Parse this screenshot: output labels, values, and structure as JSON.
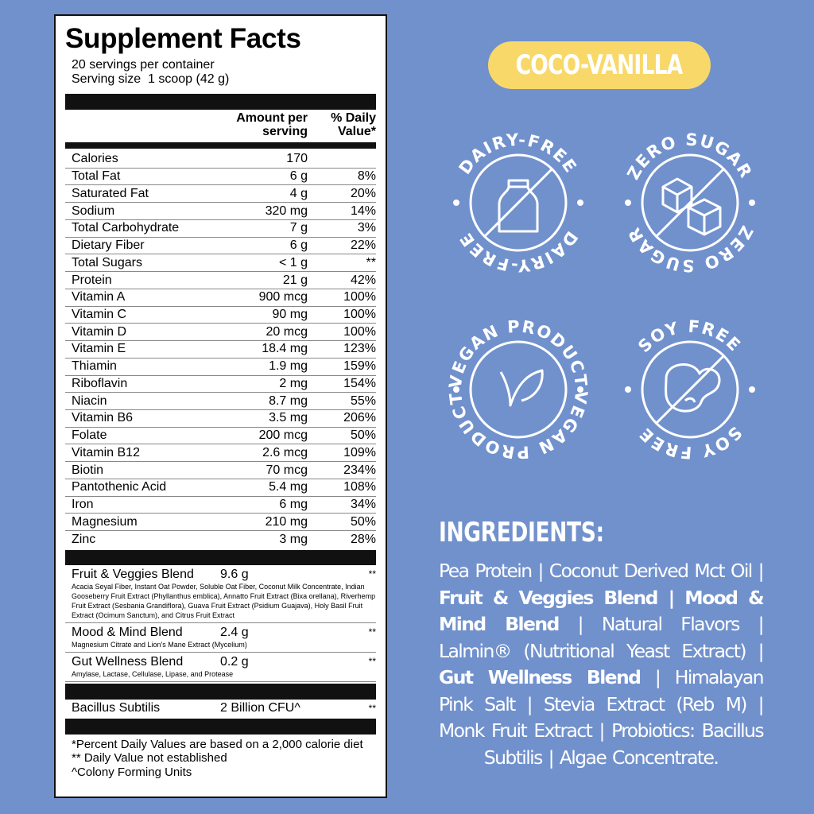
{
  "facts": {
    "title": "Supplement Facts",
    "servings": "20 servings per container",
    "serving_size": "Serving size  1 scoop (42 g)",
    "header": [
      "Amount per serving",
      "% Daily Value*"
    ],
    "rows": [
      [
        "Calories",
        "170"
      ],
      [
        "Total Fat",
        "6 g",
        "8%"
      ],
      [
        "Saturated Fat",
        "4 g",
        "20%"
      ],
      [
        "Sodium",
        "320 mg",
        "14%"
      ],
      [
        "Total Carbohydrate",
        "7 g",
        "3%"
      ],
      [
        "Dietary Fiber",
        "6 g",
        "22%"
      ],
      [
        "Total Sugars",
        "< 1 g",
        "**"
      ],
      [
        "Protein",
        "21 g",
        "42%"
      ],
      [
        "Vitamin A",
        "900 mcg",
        "100%"
      ],
      [
        "Vitamin C",
        "90 mg",
        "100%"
      ],
      [
        "Vitamin D",
        "20 mcg",
        "100%"
      ],
      [
        "Vitamin E",
        "18.4 mg",
        "123%"
      ],
      [
        "Thiamin",
        "1.9 mg",
        "159%"
      ],
      [
        "Riboflavin",
        "2 mg",
        "154%"
      ],
      [
        "Niacin",
        "8.7 mg",
        "55%"
      ],
      [
        "Vitamin B6",
        "3.5 mg",
        "206%"
      ],
      [
        "Folate",
        "200 mcg",
        "50%"
      ],
      [
        "Vitamin B12",
        "2.6 mcg",
        "109%"
      ],
      [
        "Biotin",
        "70 mcg",
        "234%"
      ],
      [
        "Pantothenic Acid",
        "5.4 mg",
        "108%"
      ],
      [
        "Iron",
        "6 mg",
        "34%"
      ],
      [
        "Magnesium",
        "210 mg",
        "50%"
      ],
      [
        "Zinc",
        "3 mg",
        "28%"
      ]
    ],
    "blends": [
      {
        "name": "Fruit & Veggies Blend",
        "amount": "9.6 g",
        "dv": "**",
        "description": "Acacia Seyal Fiber, Instant Oat Powder, Soluble Oat Fiber, Coconut Milk Concentrate, Indian Gooseberry Fruit Extract (Phyllanthus emblica), Annatto Fruit Extract (Bixa orellana), Riverhemp Fruit Extract (Sesbania Grandiflora), Guava Fruit Extract (Psidium Guajava), Holy Basil Fruit Extract (Ocimum Sanctum), and Citrus Fruit Extract"
      },
      {
        "name": "Mood & Mind Blend",
        "amount": "2.4 g",
        "dv": "**",
        "description": "Magnesium Citrate and Lion's Mane Extract (Mycelium)"
      },
      {
        "name": "Gut Wellness Blend",
        "amount": "0.2 g",
        "dv": "**",
        "description": "Amylase, Lactase, Cellulase, Lipase, and Protease"
      }
    ],
    "probiotic": [
      "Bacillus Subtilis",
      "2 Billion CFU^",
      "**"
    ],
    "footnotes": [
      "*Percent Daily Values are based on a 2,000 calorie diet",
      "** Daily Value not established",
      "^Colony Forming Units"
    ]
  },
  "flavor": "COCO-VANILLA",
  "badges": [
    "DAIRY-FREE",
    "ZERO SUGAR",
    "VEGAN PRODUCT",
    "SOY FREE"
  ],
  "ingredients": {
    "title": "INGREDIENTS:",
    "segments": [
      {
        "text": "Pea Protein | Coconut Derived Mct Oil | "
      },
      {
        "text": "Fruit & Veggies Blend | Mood & Mind Blend",
        "bold": true
      },
      {
        "text": " | Natural Flavors | Lalmin® (Nutritional Yeast Extract) | "
      },
      {
        "text": "Gut Wellness Blend",
        "bold": true
      },
      {
        "text": " | Himalayan Pink Salt | Stevia Extract (Reb M) | Monk Fruit Extract | Probiotics: Bacillus Subtilis | Algae Concentrate."
      }
    ]
  }
}
